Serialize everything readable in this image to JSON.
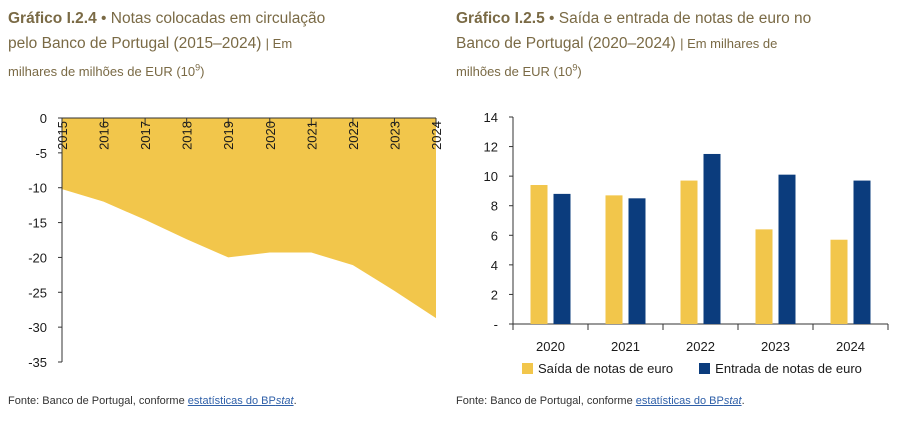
{
  "left": {
    "title_code": "Gráfico I.2.4",
    "title_sep": " • ",
    "title_text_1": "Notas colocadas em circulação",
    "title_text_2": "pelo Banco de Portugal (2015–2024)",
    "title_unit_1": "Em",
    "title_unit_2": "milhares de milhões de EUR (10",
    "title_unit_sup": "9",
    "title_unit_end": ")",
    "source_text": "Fonte: Banco de Portugal, conforme ",
    "source_link": "estatísticas do BP",
    "source_link_italic": "stat",
    "source_end": "."
  },
  "right": {
    "title_code": "Gráfico I.2.5",
    "title_sep": " • ",
    "title_text_1": "Saída e entrada de notas de euro no",
    "title_text_2": "Banco de Portugal (2020–2024)",
    "title_unit_1": "Em milhares de",
    "title_unit_2": "milhões de EUR (10",
    "title_unit_sup": "9",
    "title_unit_end": ")",
    "legend": [
      "Saída de notas de euro",
      "Entrada de notas de euro"
    ],
    "source_text": "Fonte: Banco de Portugal, conforme ",
    "source_link": "estatísticas do BP",
    "source_link_italic": "stat",
    "source_end": "."
  },
  "colors": {
    "yellow": "#f2c64b",
    "navy": "#0b3c7d",
    "title": "#7a6a45"
  },
  "chart_data": [
    {
      "type": "area",
      "x": [
        "2015",
        "2016",
        "2017",
        "2018",
        "2019",
        "2020",
        "2021",
        "2022",
        "2023",
        "2024"
      ],
      "values": [
        -10.2,
        -12.0,
        -14.6,
        -17.4,
        -20.0,
        -19.3,
        -19.3,
        -21.1,
        -24.8,
        -28.7
      ],
      "yticks": [
        "0",
        "-5",
        "-10",
        "-15",
        "-20",
        "-25",
        "-30",
        "-35"
      ],
      "ylim": [
        -35,
        0
      ],
      "grid": false
    },
    {
      "type": "bar",
      "categories": [
        "2020",
        "2021",
        "2022",
        "2023",
        "2024"
      ],
      "series": [
        {
          "name": "Saída de notas de euro",
          "values": [
            9.4,
            8.7,
            9.7,
            6.4,
            5.7
          ]
        },
        {
          "name": "Entrada de notas de euro",
          "values": [
            8.8,
            8.5,
            11.5,
            10.1,
            9.7
          ]
        }
      ],
      "yticks": [
        "14",
        "12",
        "10",
        "8",
        "6",
        "4",
        "2",
        "-"
      ],
      "ylim": [
        0,
        14
      ],
      "legend": "bottom",
      "grid": false
    }
  ]
}
